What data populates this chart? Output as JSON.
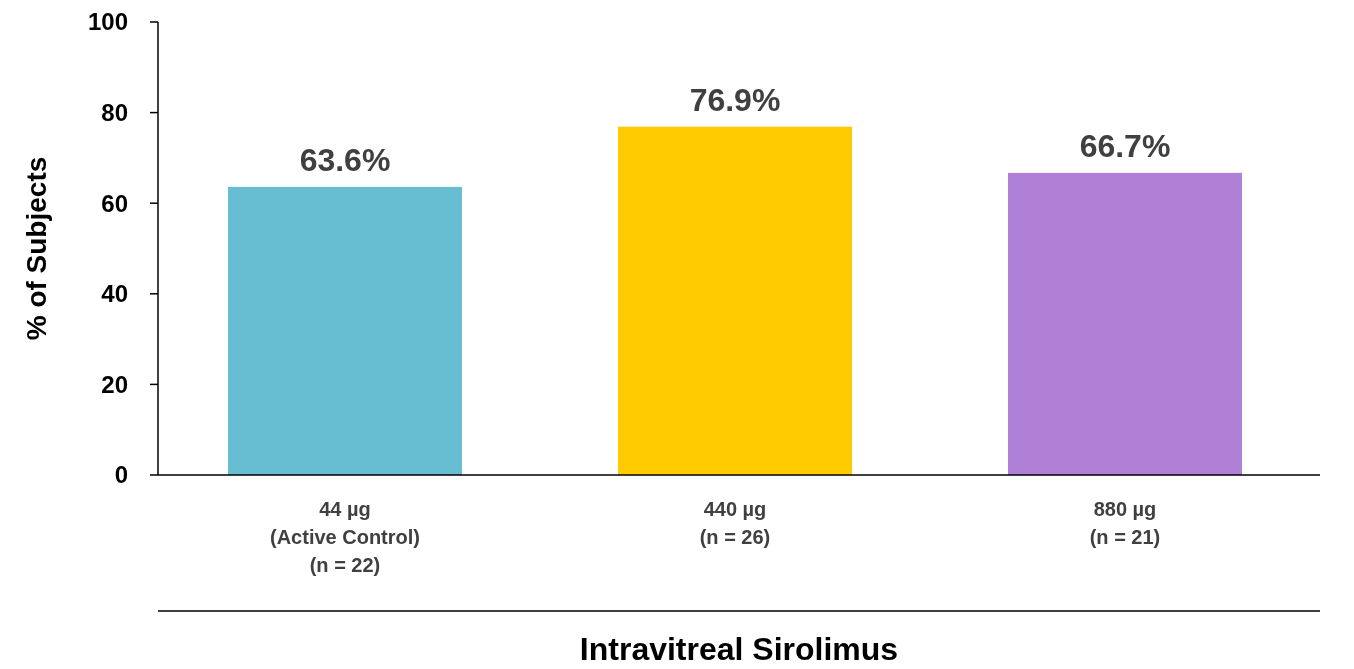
{
  "chart_data": {
    "type": "bar",
    "xlabel": "Intravitreal Sirolimus",
    "ylabel": "% of Subjects",
    "categories": [
      "44 µg\n(Active Control)\n(n = 22)",
      "440 µg\n(n = 26)",
      "880 µg\n(n = 21)"
    ],
    "values": [
      63.6,
      76.9,
      66.7
    ],
    "colors": [
      "#67bdd2",
      "#fdcb00",
      "#b07fd6"
    ],
    "value_labels": [
      "63.6%",
      "76.9%",
      "66.7%"
    ],
    "ylim": [
      0,
      100
    ],
    "yticks": [
      0,
      20,
      40,
      60,
      80,
      100
    ]
  }
}
